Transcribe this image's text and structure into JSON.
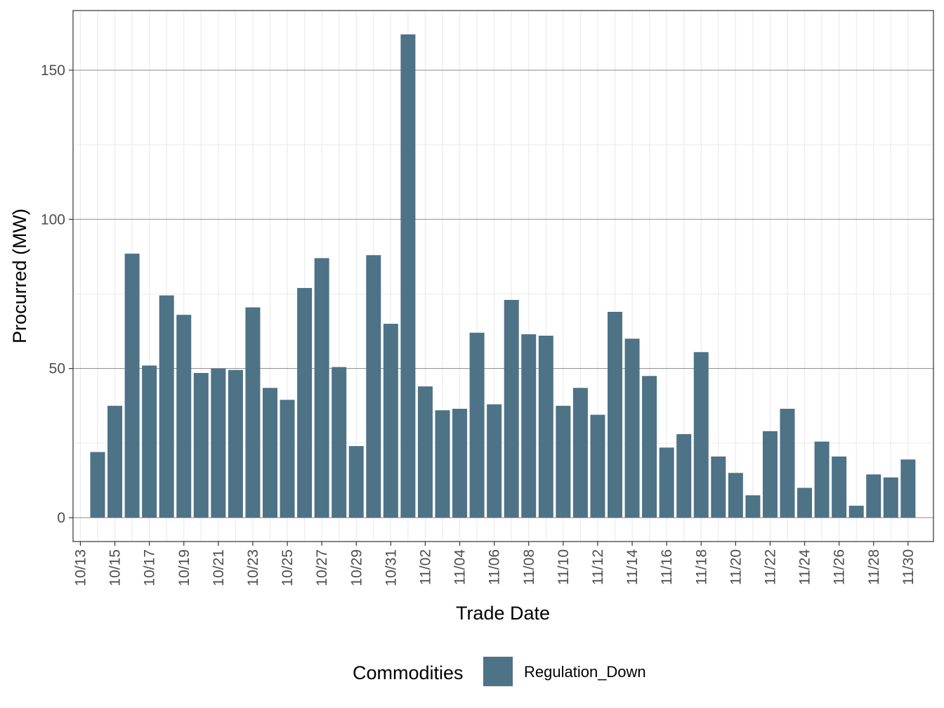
{
  "colors": {
    "bar": "#4E7286",
    "panel_border": "#333333",
    "grid_major": "#8a8a8a",
    "grid_minor": "#ebebeb",
    "tick_text": "#4d4d4d"
  },
  "legend": {
    "title": "Commodities",
    "items": [
      {
        "label": "Regulation_Down",
        "color": "#4E7286"
      }
    ],
    "placement": "bottom"
  },
  "chart_data": {
    "type": "bar",
    "title": "",
    "xlabel": "Trade Date",
    "ylabel": "Procurred (MW)",
    "ylim": [
      -8,
      170
    ],
    "yticks": [
      0,
      50,
      100,
      150
    ],
    "grid": true,
    "x_tick_labels": [
      "10/13",
      "10/15",
      "10/17",
      "10/19",
      "10/21",
      "10/23",
      "10/25",
      "10/27",
      "10/29",
      "10/31",
      "11/02",
      "11/04",
      "11/06",
      "11/08",
      "11/10",
      "11/12",
      "11/14",
      "11/16",
      "11/18",
      "11/20",
      "11/22",
      "11/24",
      "11/26",
      "11/28",
      "11/30"
    ],
    "categories": [
      "10/14",
      "10/15",
      "10/16",
      "10/17",
      "10/18",
      "10/19",
      "10/20",
      "10/21",
      "10/22",
      "10/23",
      "10/24",
      "10/25",
      "10/26",
      "10/27",
      "10/28",
      "10/29",
      "10/30",
      "10/31",
      "11/01",
      "11/02",
      "11/03",
      "11/04",
      "11/05",
      "11/06",
      "11/07",
      "11/08",
      "11/09",
      "11/10",
      "11/11",
      "11/12",
      "11/13",
      "11/14",
      "11/15",
      "11/16",
      "11/17",
      "11/18",
      "11/19",
      "11/20",
      "11/21",
      "11/22",
      "11/23",
      "11/24",
      "11/25",
      "11/26",
      "11/27",
      "11/28",
      "11/29",
      "11/30"
    ],
    "series": [
      {
        "name": "Regulation_Down",
        "values": [
          22,
          37.5,
          88.5,
          51,
          74.5,
          68,
          48.5,
          50,
          49.5,
          70.5,
          43.5,
          39.5,
          77,
          87,
          50.5,
          24,
          88,
          65,
          162,
          44,
          36,
          36.5,
          62,
          38,
          73,
          61.5,
          61,
          37.5,
          43.5,
          34.5,
          69,
          60,
          47.5,
          23.5,
          28,
          55.5,
          20.5,
          15,
          7.5,
          29,
          36.5,
          10,
          25.5,
          20.5,
          4,
          14.5,
          13.5,
          19.5
        ]
      }
    ]
  }
}
